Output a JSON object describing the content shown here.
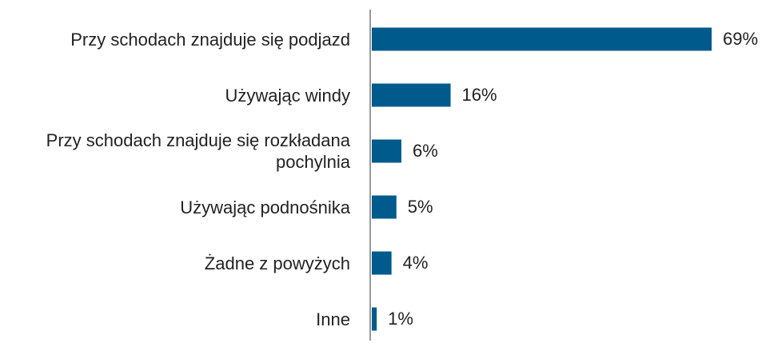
{
  "chart_data": {
    "type": "bar",
    "orientation": "horizontal",
    "categories": [
      "Przy schodach znajduje się podjazd",
      "Używając windy",
      "Przy schodach znajduje się rozkładana pochylnia",
      "Używając podnośnika",
      "Żadne z powyżych",
      "Inne"
    ],
    "values": [
      69,
      16,
      6,
      5,
      4,
      1
    ],
    "value_labels": [
      "69%",
      "16%",
      "6%",
      "5%",
      "4%",
      "1%"
    ],
    "color": "#005a8c"
  }
}
